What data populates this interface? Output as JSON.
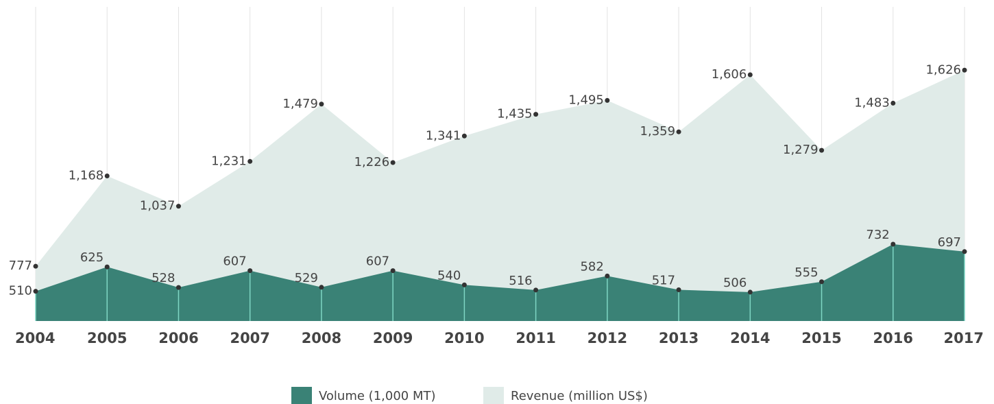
{
  "chart_data": {
    "type": "area",
    "categories": [
      "2004",
      "2005",
      "2006",
      "2007",
      "2008",
      "2009",
      "2010",
      "2011",
      "2012",
      "2013",
      "2014",
      "2015",
      "2016",
      "2017"
    ],
    "series": [
      {
        "name": "Volume (1,000 MT)",
        "color": "#3a8276",
        "axis": "y2",
        "values": [
          510,
          625,
          528,
          607,
          529,
          607,
          540,
          516,
          582,
          517,
          506,
          555,
          732,
          697
        ],
        "value_labels": [
          "510",
          "625",
          "528",
          "607",
          "529",
          "607",
          "540",
          "516",
          "582",
          "517",
          "506",
          "555",
          "732",
          "697"
        ]
      },
      {
        "name": "Revenue (million US$)",
        "color": "#e0ebe8",
        "values": [
          777,
          1168,
          1037,
          1231,
          1479,
          1226,
          1341,
          1435,
          1495,
          1359,
          1606,
          1279,
          1483,
          1626
        ],
        "value_labels": [
          "777",
          "1,168",
          "1,037",
          "1,231",
          "1,479",
          "1,226",
          "1,341",
          "1,435",
          "1,495",
          "1,359",
          "1,606",
          "1,279",
          "1,483",
          "1,626"
        ]
      }
    ],
    "ylim": [
      540,
      1900
    ],
    "y2lim": [
      370,
      1850
    ],
    "grid": true,
    "legend": "bottom"
  }
}
